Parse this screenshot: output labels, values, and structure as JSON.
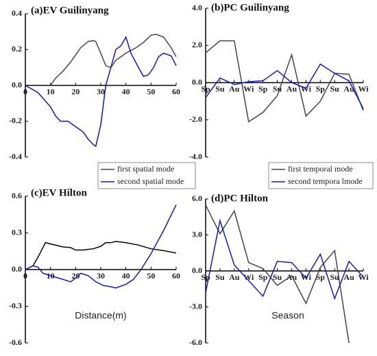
{
  "chart_data": [
    {
      "type": "line",
      "title": "(a)EV Guilinyang",
      "legend": "below right",
      "xlim": [
        0,
        60
      ],
      "xticks": [
        0,
        10,
        20,
        30,
        40,
        50,
        60
      ],
      "ylim": [
        -0.4,
        0.4
      ],
      "yticks": [
        0.4,
        0.2,
        {
          "value": 0,
          "label": "0.0"
        },
        -0.2,
        -0.4
      ],
      "series": [
        {
          "name": "first spatial mode",
          "color": "#444444",
          "x": [
            10,
            12,
            15,
            18,
            22,
            25,
            27,
            28,
            30,
            32,
            34,
            36,
            40,
            44,
            47,
            50,
            52,
            55,
            58,
            60
          ],
          "values": [
            0,
            0.04,
            0.08,
            0.13,
            0.21,
            0.245,
            0.25,
            0.245,
            0.18,
            0.11,
            0.1,
            0.14,
            0.18,
            0.21,
            0.24,
            0.28,
            0.285,
            0.27,
            0.21,
            0.16
          ]
        },
        {
          "name": "second spatial mode",
          "color": "#1414d2",
          "x": [
            0,
            5,
            10,
            12,
            14,
            17,
            20,
            23,
            25,
            27,
            28,
            30,
            32,
            34,
            36,
            38,
            40,
            42,
            45,
            47,
            49,
            51,
            53,
            55,
            58,
            60
          ],
          "values": [
            0,
            -0.04,
            -0.12,
            -0.17,
            -0.2,
            -0.2,
            -0.23,
            -0.26,
            -0.3,
            -0.33,
            -0.34,
            -0.22,
            0,
            0.1,
            0.2,
            0.22,
            0.27,
            0.18,
            0.1,
            0.05,
            0.06,
            0.1,
            0.16,
            0.18,
            0.165,
            0.11
          ]
        }
      ]
    },
    {
      "type": "line",
      "title": "(b)PC Guilinyang",
      "legend": "below right",
      "categories": [
        "Sp",
        "Su",
        "Au",
        "Wi",
        "Sp",
        "Su",
        "Au",
        "Wi",
        "Sp",
        "Su",
        "Au",
        "Wi"
      ],
      "ylim": [
        -4,
        4
      ],
      "yticks": [
        {
          "value": 4,
          "label": "4.0"
        },
        {
          "value": 2,
          "label": "2.0"
        },
        {
          "value": 0,
          "label": "0.0"
        },
        {
          "value": -2,
          "label": "-2.0"
        },
        {
          "value": -4,
          "label": "-4.0"
        }
      ],
      "series": [
        {
          "name": "first temporal mode",
          "color": "#444444",
          "values": [
            1.6,
            2.25,
            2.25,
            -2.1,
            -1.6,
            -0.7,
            1.5,
            -1.8,
            -1.0,
            0.5,
            0.45,
            -1.5
          ]
        },
        {
          "name": "second tempora lmode",
          "color": "#1414d2",
          "values": [
            -0.8,
            0.25,
            -0.1,
            0.05,
            0.1,
            0.65,
            0,
            -0.3,
            1.0,
            0.5,
            0.1,
            -1.4
          ]
        }
      ]
    },
    {
      "type": "line",
      "title": "(c)EV Hilton",
      "x_label": "Distance(m)",
      "xlim": [
        0,
        60
      ],
      "xticks": [
        0,
        10,
        20,
        30,
        40,
        50,
        60
      ],
      "ylim": [
        -0.6,
        0.6
      ],
      "yticks": [
        {
          "value": 0.6,
          "label": "0.6"
        },
        {
          "value": 0.3,
          "label": "0.3"
        },
        {
          "value": 0,
          "label": "0.0"
        },
        {
          "value": -0.3,
          "label": "-0.3"
        },
        {
          "value": -0.6,
          "label": "-0.6"
        }
      ],
      "series": [
        {
          "color": "#000000",
          "x": [
            0,
            3,
            5,
            8,
            10,
            15,
            18,
            20,
            23,
            27,
            30,
            32,
            34,
            36,
            40,
            45,
            50,
            55,
            60
          ],
          "values": [
            0,
            0.03,
            0.1,
            0.22,
            0.21,
            0.185,
            0.18,
            0.16,
            0.16,
            0.17,
            0.19,
            0.22,
            0.22,
            0.23,
            0.22,
            0.2,
            0.17,
            0.155,
            0.135
          ]
        },
        {
          "color": "#1414d2",
          "x": [
            0,
            3,
            5,
            7,
            10,
            15,
            18,
            20,
            22,
            25,
            28,
            31,
            34,
            36,
            40,
            43,
            46,
            50,
            55,
            60
          ],
          "values": [
            0,
            0.03,
            0.02,
            -0.03,
            -0.05,
            -0.08,
            -0.1,
            -0.07,
            -0.03,
            -0.05,
            -0.1,
            -0.13,
            -0.14,
            -0.15,
            -0.12,
            -0.08,
            0,
            0.13,
            0.32,
            0.53
          ]
        }
      ]
    },
    {
      "type": "line",
      "title": "(d)PC Hilton",
      "x_label": "Season",
      "categories": [
        "Sp",
        "Su",
        "Au",
        "Wi",
        "Sp",
        "Su",
        "Au",
        "Wi",
        "Sp",
        "Su",
        "Au",
        "Wi"
      ],
      "ylim": [
        -6,
        6
      ],
      "yticks": [
        {
          "value": 6,
          "label": "6.0"
        },
        {
          "value": 3,
          "label": "3.0"
        },
        {
          "value": 0,
          "label": "0.0"
        },
        {
          "value": -3,
          "label": "-3.0"
        },
        {
          "value": -6,
          "label": "-6.0"
        }
      ],
      "series": [
        {
          "color": "#444444",
          "values": [
            5.5,
            3.1,
            5.0,
            0.7,
            0.2,
            -1.2,
            -0.4,
            -2.7,
            0.3,
            1.7,
            -6.0,
            null
          ]
        },
        {
          "color": "#1414d2",
          "values": [
            -1.8,
            4.2,
            0.5,
            -0.8,
            -2.1,
            0.8,
            0.7,
            -0.6,
            1.4,
            -2.3,
            0.8,
            -0.5
          ]
        }
      ]
    }
  ]
}
